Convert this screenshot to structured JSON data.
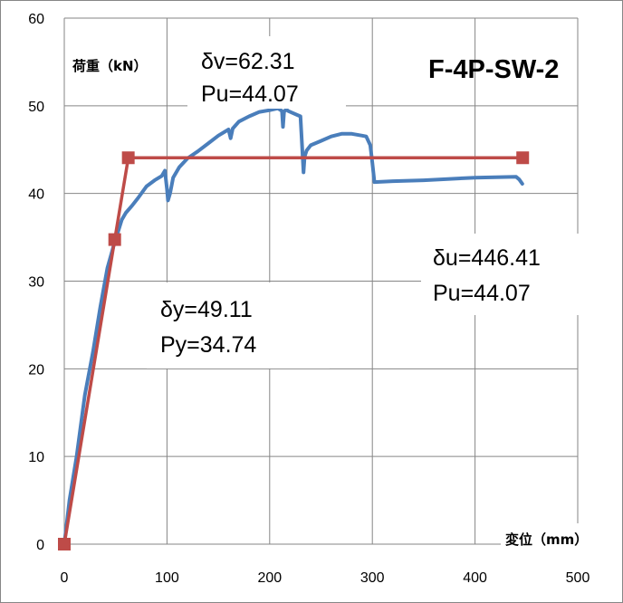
{
  "chart_data": {
    "type": "line",
    "title": "F-4P-SW-2",
    "xlabel": "変位（mm）",
    "ylabel": "荷重（kN）",
    "xlim": [
      0,
      500
    ],
    "ylim": [
      0,
      60
    ],
    "x_ticks": [
      "0",
      "100",
      "200",
      "300",
      "400",
      "500"
    ],
    "y_ticks": [
      "0",
      "10",
      "20",
      "30",
      "40",
      "50",
      "60"
    ],
    "grid": true,
    "legend": "none",
    "colors": {
      "experimental": "#4a7ebb",
      "bilinear": "#be4b48",
      "grid": "#868686",
      "border": "#868686"
    },
    "series": [
      {
        "id": "experimental",
        "x": [
          0,
          5,
          12,
          20,
          28,
          35,
          42,
          48,
          52,
          56,
          60,
          66,
          72,
          80,
          88,
          95,
          98,
          100,
          101,
          103,
          106,
          112,
          120,
          130,
          140,
          150,
          160,
          162,
          164,
          170,
          180,
          190,
          200,
          208,
          212,
          213,
          214,
          216,
          218,
          222,
          230,
          232,
          233,
          234,
          236,
          240,
          250,
          260,
          270,
          280,
          290,
          294,
          298,
          300,
          302,
          320,
          350,
          400,
          440,
          443,
          446
        ],
        "y": [
          0,
          5,
          10,
          17,
          22,
          27,
          31.5,
          34,
          35.5,
          37,
          37.8,
          38.6,
          39.5,
          40.8,
          41.5,
          42,
          42.6,
          40.5,
          39.2,
          40,
          41.8,
          43,
          44,
          44.8,
          45.7,
          46.6,
          47.3,
          46.3,
          47.4,
          48.2,
          48.8,
          49.3,
          49.5,
          49.7,
          49.4,
          47.6,
          49.3,
          49.6,
          49.4,
          49.2,
          48.8,
          44.5,
          42.4,
          44.2,
          44.9,
          45.5,
          46,
          46.5,
          46.8,
          46.8,
          46.6,
          46.5,
          45.5,
          43.5,
          41.3,
          41.4,
          41.5,
          41.8,
          41.9,
          41.6,
          41.1
        ]
      },
      {
        "id": "bilinear",
        "x": [
          0,
          49.11,
          62.31,
          446.41
        ],
        "y": [
          0,
          34.74,
          44.07,
          44.07
        ]
      }
    ],
    "annotations": [
      {
        "id": "yield",
        "lines": [
          "δy=49.11",
          "Py=34.74"
        ]
      },
      {
        "id": "peak",
        "lines": [
          "δv=62.31",
          "Pu=44.07"
        ]
      },
      {
        "id": "ultimate",
        "lines": [
          "δu=446.41",
          "Pu=44.07"
        ]
      }
    ]
  }
}
